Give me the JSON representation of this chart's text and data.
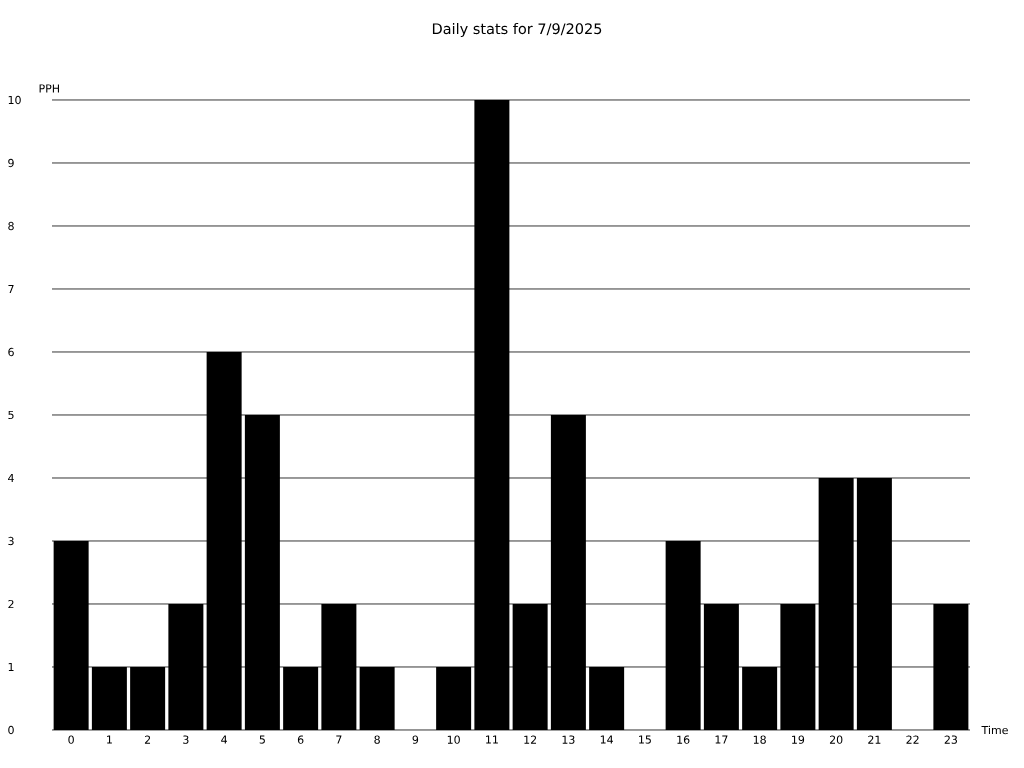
{
  "chart_data": {
    "type": "bar",
    "title": "Daily stats for 7/9/2025",
    "xlabel": "Time",
    "ylabel": "PPH",
    "categories": [
      "0",
      "1",
      "2",
      "3",
      "4",
      "5",
      "6",
      "7",
      "8",
      "9",
      "10",
      "11",
      "12",
      "13",
      "14",
      "15",
      "16",
      "17",
      "18",
      "19",
      "20",
      "21",
      "22",
      "23"
    ],
    "values": [
      3,
      1,
      1,
      2,
      6,
      5,
      1,
      2,
      1,
      0,
      1,
      10,
      2,
      5,
      1,
      0,
      3,
      2,
      1,
      2,
      4,
      4,
      0,
      2
    ],
    "color": "#000000",
    "ylim": [
      0,
      10
    ],
    "yticks": [
      0,
      1,
      2,
      3,
      4,
      5,
      6,
      7,
      8,
      9,
      10
    ],
    "grid": "y"
  }
}
